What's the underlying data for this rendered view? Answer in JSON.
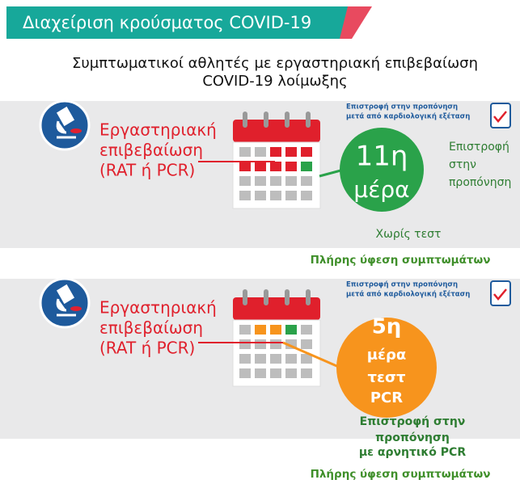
{
  "header": {
    "title": "Διαχείριση κρούσματος COVID-19"
  },
  "subtitle": [
    "Συμπτωματικοί αθλητές με εργαστηριακή επιβεβαίωση",
    "COVID-19 λοίμωξης"
  ],
  "panels": [
    {
      "confirmation": [
        "Εργαστηριακή",
        "επιβεβαίωση",
        "(RAT ή PCR)"
      ],
      "cardio_note": [
        "Επιστροφή στην προπόνηση",
        "μετά από καρδιολογική εξέταση"
      ],
      "circle": [
        "11η",
        "μέρα"
      ],
      "return_text": [
        "Επιστροφή",
        "στην",
        "προπόνηση"
      ],
      "note": "Χωρίς τεστ",
      "footer": "Πλήρης ύφεση συμπτωμάτων"
    },
    {
      "confirmation": [
        "Εργαστηριακή",
        "επιβεβαίωση",
        "(RAT ή PCR)"
      ],
      "cardio_note": [
        "Επιστροφή στην προπόνηση",
        "μετά από καρδιολογική εξέταση"
      ],
      "circle": [
        "5η",
        "μέρα",
        "τεστ",
        "PCR"
      ],
      "return_text": [
        "Επιστροφή στην",
        "προπόνηση",
        "με αρνητικό PCR"
      ],
      "footer": "Πλήρης ύφεση συμπτωμάτων"
    }
  ]
}
